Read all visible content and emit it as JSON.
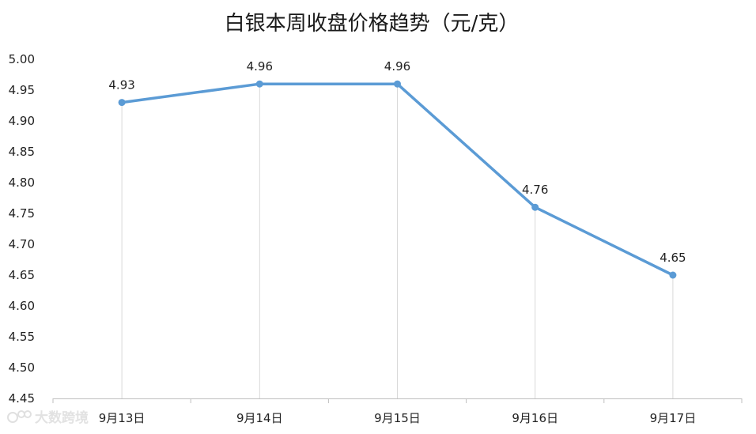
{
  "chart_data": {
    "type": "line",
    "title": "白银本周收盘价格趋势（元/克）",
    "categories": [
      "9月13日",
      "9月14日",
      "9月15日",
      "9月16日",
      "9月17日"
    ],
    "values": [
      4.93,
      4.96,
      4.96,
      4.76,
      4.65
    ],
    "data_labels": [
      "4.93",
      "4.96",
      "4.96",
      "4.76",
      "4.65"
    ],
    "ylim": [
      4.45,
      5.0
    ],
    "ystep": 0.05,
    "y_tick_labels": [
      "4.45",
      "4.50",
      "4.55",
      "4.60",
      "4.65",
      "4.70",
      "4.75",
      "4.80",
      "4.85",
      "4.90",
      "4.95",
      "5.00"
    ],
    "line_color": "#5b9bd5",
    "grid": "vertical drop lines",
    "legend": "none"
  },
  "watermark": {
    "text": "大数跨境"
  }
}
